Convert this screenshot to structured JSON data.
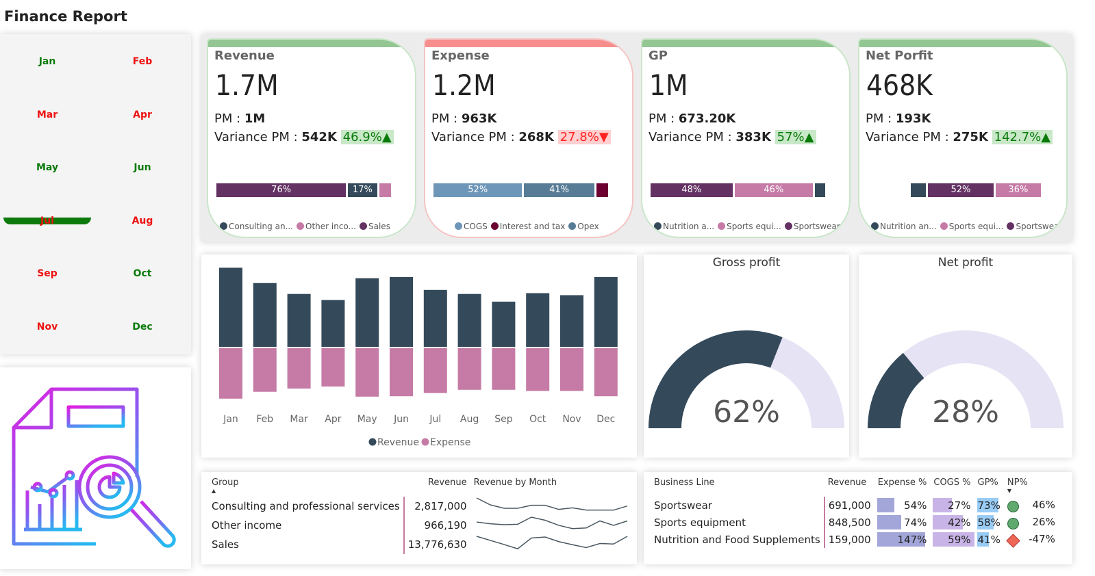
{
  "title": "Finance Report",
  "months": [
    {
      "label": "Jan",
      "color": "#0a7a0a"
    },
    {
      "label": "Feb",
      "color": "#ee1111"
    },
    {
      "label": "Mar",
      "color": "#ee1111"
    },
    {
      "label": "Apr",
      "color": "#ee1111"
    },
    {
      "label": "May",
      "color": "#0a7a0a",
      "selected": true
    },
    {
      "label": "Jun",
      "color": "#0a7a0a"
    },
    {
      "label": "Jul",
      "color": "#ee1111"
    },
    {
      "label": "Aug",
      "color": "#ee1111"
    },
    {
      "label": "Sep",
      "color": "#ee1111"
    },
    {
      "label": "Oct",
      "color": "#0a7a0a"
    },
    {
      "label": "Nov",
      "color": "#ee1111"
    },
    {
      "label": "Dec",
      "color": "#0a7a0a"
    }
  ],
  "cards": [
    {
      "title": "Revenue",
      "value": "1.7M",
      "pm_label": "PM : ",
      "pm": "1M",
      "var_label": "Variance PM : ",
      "var": "542K",
      "pct": "46.9%▲",
      "trend": "up",
      "segments": [
        {
          "pct": 76,
          "label": "76%",
          "color": "#633263"
        },
        {
          "pct": 17,
          "label": "17%",
          "color": "#344a5a"
        },
        {
          "pct": 7,
          "label": "",
          "color": "#c57ba6"
        }
      ],
      "legend": [
        {
          "label": "Consulting an...",
          "color": "#344a5a"
        },
        {
          "label": "Other inco...",
          "color": "#c57ba6"
        },
        {
          "label": "Sales",
          "color": "#633263"
        }
      ]
    },
    {
      "title": "Expense",
      "value": "1.2M",
      "pm_label": "PM : ",
      "pm": "963K",
      "var_label": "Variance PM : ",
      "var": "268K",
      "pct": "27.8%▼",
      "trend": "down",
      "segments": [
        {
          "pct": 52,
          "label": "52%",
          "color": "#6d96b8"
        },
        {
          "pct": 41,
          "label": "41%",
          "color": "#587c96"
        },
        {
          "pct": 7,
          "label": "",
          "color": "#6b0031"
        }
      ],
      "legend": [
        {
          "label": "COGS",
          "color": "#6d96b8"
        },
        {
          "label": "Interest and tax",
          "color": "#6b0031"
        },
        {
          "label": "Opex",
          "color": "#587c96"
        }
      ]
    },
    {
      "title": "GP",
      "value": "1M",
      "pm_label": "PM : ",
      "pm": "673.20K",
      "var_label": "Variance PM : ",
      "var": "383K",
      "pct": "57%▲",
      "trend": "up",
      "segments": [
        {
          "pct": 48,
          "label": "48%",
          "color": "#633263"
        },
        {
          "pct": 46,
          "label": "46%",
          "color": "#c57ba6"
        },
        {
          "pct": 6,
          "label": "",
          "color": "#344a5a"
        }
      ],
      "legend": [
        {
          "label": "Nutrition a...",
          "color": "#344a5a"
        },
        {
          "label": "Sports equi...",
          "color": "#c57ba6"
        },
        {
          "label": "Sportswear",
          "color": "#633263"
        }
      ]
    },
    {
      "title": "Net Porfit",
      "value": "468K",
      "pm_label": "PM : ",
      "pm": "193K",
      "var_label": "Variance PM : ",
      "var": "275K",
      "pct": "142.7%▲",
      "trend": "up",
      "segments": [
        {
          "pct": 12,
          "label": "",
          "color": "#344a5a"
        },
        {
          "pct": 52,
          "label": "52%",
          "color": "#633263"
        },
        {
          "pct": 36,
          "label": "36%",
          "color": "#c57ba6"
        }
      ],
      "legend": [
        {
          "label": "Nutrition an...",
          "color": "#344a5a"
        },
        {
          "label": "Sports equi...",
          "color": "#c57ba6"
        },
        {
          "label": "Sportswear",
          "color": "#633263"
        }
      ]
    }
  ],
  "chart_data": {
    "type": "bar",
    "categories": [
      "Jan",
      "Feb",
      "Mar",
      "Apr",
      "May",
      "Jun",
      "Jul",
      "Aug",
      "Sep",
      "Oct",
      "Nov",
      "Dec"
    ],
    "series": [
      {
        "name": "Revenue",
        "color": "#344a5a",
        "values": [
          1.96,
          1.58,
          1.31,
          1.16,
          1.7,
          1.73,
          1.41,
          1.31,
          1.12,
          1.33,
          1.28,
          1.73
        ]
      },
      {
        "name": "Expense",
        "color": "#c57ba6",
        "values": [
          1.25,
          1.08,
          1.0,
          0.95,
          1.2,
          1.19,
          1.11,
          1.03,
          1.03,
          1.06,
          1.06,
          1.19
        ]
      }
    ],
    "legend": "bottom",
    "grid": false
  },
  "gauges": [
    {
      "title": "Gross profit",
      "value": "62%",
      "fraction": 0.62
    },
    {
      "title": "Net profit",
      "value": "28%",
      "fraction": 0.28
    }
  ],
  "group_table": {
    "headers": [
      "Group",
      "Revenue",
      "Revenue by Month"
    ],
    "rows": [
      {
        "group": "Consulting and professional services",
        "revenue": "2,817,000",
        "trend": [
          60,
          30,
          15,
          15,
          28,
          28,
          10,
          17,
          7,
          7,
          7,
          25
        ]
      },
      {
        "group": "Other income",
        "revenue": "966,190",
        "trend": [
          40,
          32,
          28,
          30,
          62,
          48,
          25,
          10,
          13,
          45,
          25,
          45
        ]
      },
      {
        "group": "Sales",
        "revenue": "13,776,630",
        "trend": [
          57,
          40,
          23,
          5,
          50,
          54,
          35,
          22,
          10,
          27,
          25,
          57
        ]
      }
    ]
  },
  "business_table": {
    "headers": [
      "Business Line",
      "Revenue",
      "Expense %",
      "COGS %",
      "GP%",
      "NP%"
    ],
    "rows": [
      {
        "line": "Sportswear",
        "revenue": "691,000",
        "expense": "54%",
        "expense_v": 54,
        "cogs": "27%",
        "cogs_v": 27,
        "gp": "73%",
        "gp_v": 73,
        "np": "46%",
        "status": "good"
      },
      {
        "line": "Sports equipment",
        "revenue": "848,500",
        "expense": "74%",
        "expense_v": 74,
        "cogs": "42%",
        "cogs_v": 42,
        "gp": "58%",
        "gp_v": 58,
        "np": "26%",
        "status": "good"
      },
      {
        "line": "Nutrition and Food Supplements",
        "revenue": "159,000",
        "expense": "147%",
        "expense_v": 147,
        "cogs": "59%",
        "cogs_v": 59,
        "gp": "41%",
        "gp_v": 41,
        "np": "-47%",
        "status": "bad"
      }
    ]
  }
}
